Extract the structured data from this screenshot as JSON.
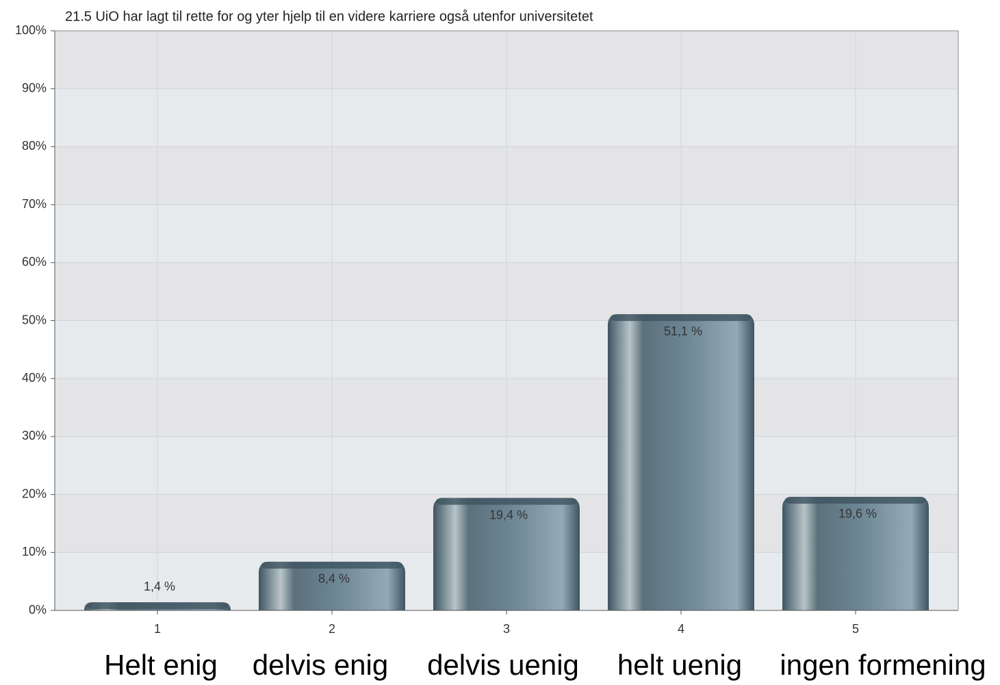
{
  "chart_data": {
    "type": "bar",
    "title": "21.5 UiO har lagt til rette for og yter hjelp til en videre karriere også utenfor universitetet",
    "categories": [
      "1",
      "2",
      "3",
      "4",
      "5"
    ],
    "values": [
      1.4,
      8.4,
      19.4,
      51.1,
      19.6
    ],
    "value_labels": [
      "1,4 %",
      "8,4 %",
      "19,4 %",
      "51,1 %",
      "19,6 %"
    ],
    "category_descriptions": [
      "Helt enig",
      "delvis enig",
      "delvis uenig",
      "helt uenig",
      "ingen formening"
    ],
    "color": "#6a8593",
    "ylim": [
      0,
      100
    ],
    "yticks": [
      {
        "value": 0,
        "label": "0%"
      },
      {
        "value": 10,
        "label": "10%"
      },
      {
        "value": 20,
        "label": "20%"
      },
      {
        "value": 30,
        "label": "30%"
      },
      {
        "value": 40,
        "label": "40%"
      },
      {
        "value": 50,
        "label": "50%"
      },
      {
        "value": 60,
        "label": "60%"
      },
      {
        "value": 70,
        "label": "70%"
      },
      {
        "value": 80,
        "label": "80%"
      },
      {
        "value": 90,
        "label": "90%"
      },
      {
        "value": 100,
        "label": "100%"
      }
    ],
    "grid": true
  }
}
